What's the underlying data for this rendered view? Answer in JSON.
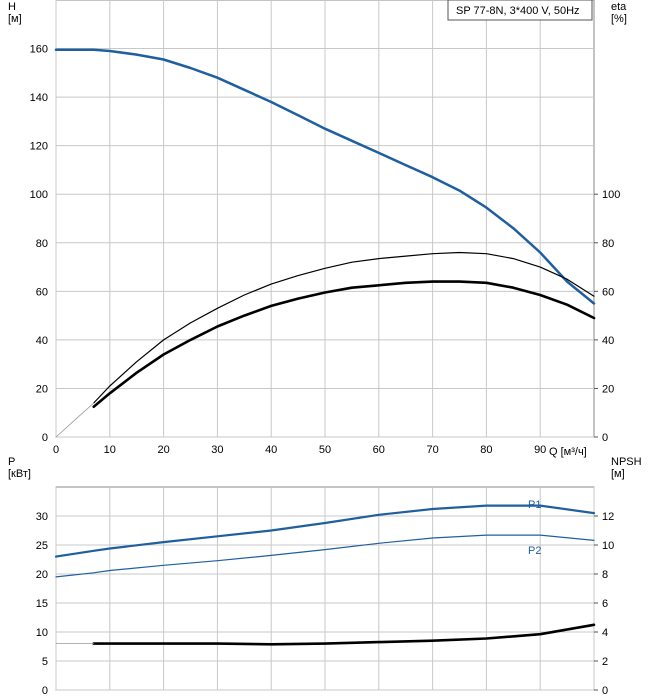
{
  "chart_data": [
    {
      "type": "line",
      "title": "SP 77-8N, 3*400 V, 50Hz",
      "xlabel": "Q [м³/ч]",
      "ylabel_left": "H\n[м]",
      "ylabel_right": "eta\n[%]",
      "xlim": [
        0,
        100
      ],
      "ylim_left": [
        0,
        180
      ],
      "ylim_right": [
        0,
        180
      ],
      "xticks": [
        0,
        10,
        20,
        30,
        40,
        50,
        60,
        70,
        80,
        90
      ],
      "yticks_left": [
        0,
        20,
        40,
        60,
        80,
        100,
        120,
        140,
        160
      ],
      "yticks_right": [
        0,
        20,
        40,
        60,
        80,
        100
      ],
      "grid": true,
      "legend_position": "top-right",
      "series": [
        {
          "name": "",
          "axis": "left",
          "color": "#1f5fa0",
          "width": 2.5,
          "x": [
            0,
            7,
            10,
            15,
            20,
            25,
            30,
            35,
            40,
            45,
            50,
            55,
            60,
            65,
            70,
            75,
            80,
            85,
            90,
            95,
            100
          ],
          "y": [
            159.5,
            159.5,
            159,
            157.5,
            155.5,
            152,
            148,
            143,
            138,
            132.5,
            127,
            122,
            117,
            112,
            107,
            101.5,
            94.5,
            86,
            76,
            64,
            55
          ]
        },
        {
          "name": "",
          "axis": "right",
          "color": "#000000",
          "width": 1.2,
          "x": [
            7,
            10,
            15,
            20,
            25,
            30,
            35,
            40,
            45,
            50,
            55,
            60,
            65,
            70,
            75,
            80,
            85,
            90,
            95,
            100
          ],
          "y": [
            14,
            21,
            31,
            40,
            47,
            53,
            58.5,
            63,
            66.5,
            69.5,
            72,
            73.5,
            74.5,
            75.5,
            76,
            75.5,
            73.5,
            70,
            65,
            58
          ]
        },
        {
          "name": "",
          "axis": "right",
          "color": "#000000",
          "width": 2.6,
          "x": [
            7,
            10,
            15,
            20,
            25,
            30,
            35,
            40,
            45,
            50,
            55,
            60,
            65,
            70,
            75,
            80,
            85,
            90,
            95,
            100
          ],
          "y": [
            12.5,
            18,
            26.5,
            34,
            40,
            45.5,
            50,
            54,
            57,
            59.5,
            61.5,
            62.5,
            63.5,
            64,
            64,
            63.5,
            61.5,
            58.5,
            54.5,
            49
          ]
        },
        {
          "name": "",
          "axis": "left",
          "color": "#9a9a9a",
          "width": 0.8,
          "x": [
            0,
            2,
            4,
            6,
            7
          ],
          "y": [
            0,
            4,
            8,
            12,
            14
          ]
        }
      ]
    },
    {
      "type": "line",
      "title": "",
      "xlabel": "",
      "ylabel_left": "P\n[кВт]",
      "ylabel_right": "NPSH\n[м]",
      "xlim": [
        0,
        100
      ],
      "ylim_left": [
        0,
        35
      ],
      "ylim_right": [
        0,
        14
      ],
      "xticks": [
        0,
        10,
        20,
        30,
        40,
        50,
        60,
        70,
        80,
        90,
        100
      ],
      "yticks_left": [
        0,
        5,
        10,
        15,
        20,
        25,
        30
      ],
      "yticks_right": [
        0,
        2,
        4,
        6,
        8,
        10,
        12
      ],
      "grid": true,
      "series": [
        {
          "name": "P1",
          "axis": "left",
          "color": "#1f5fa0",
          "width": 2.2,
          "x": [
            0,
            7,
            10,
            20,
            30,
            40,
            50,
            60,
            70,
            80,
            90,
            100
          ],
          "y": [
            23,
            24,
            24.4,
            25.5,
            26.5,
            27.5,
            28.8,
            30.2,
            31.2,
            31.8,
            31.8,
            30.5
          ]
        },
        {
          "name": "P2",
          "axis": "left",
          "color": "#1f5fa0",
          "width": 1.2,
          "x": [
            0,
            7,
            10,
            20,
            30,
            40,
            50,
            60,
            70,
            80,
            90,
            100
          ],
          "y": [
            19.5,
            20.2,
            20.6,
            21.5,
            22.3,
            23.2,
            24.2,
            25.3,
            26.2,
            26.7,
            26.7,
            25.8
          ]
        },
        {
          "name": "",
          "axis": "right",
          "color": "#000000",
          "width": 2.6,
          "x": [
            7,
            10,
            20,
            30,
            40,
            50,
            60,
            70,
            80,
            90,
            100
          ],
          "y": [
            3.2,
            3.2,
            3.2,
            3.2,
            3.15,
            3.2,
            3.3,
            3.4,
            3.55,
            3.85,
            4.5
          ]
        },
        {
          "name": "",
          "axis": "right",
          "color": "#9a9a9a",
          "width": 0.8,
          "x": [
            0,
            7
          ],
          "y": [
            3.2,
            3.2
          ]
        }
      ]
    }
  ]
}
